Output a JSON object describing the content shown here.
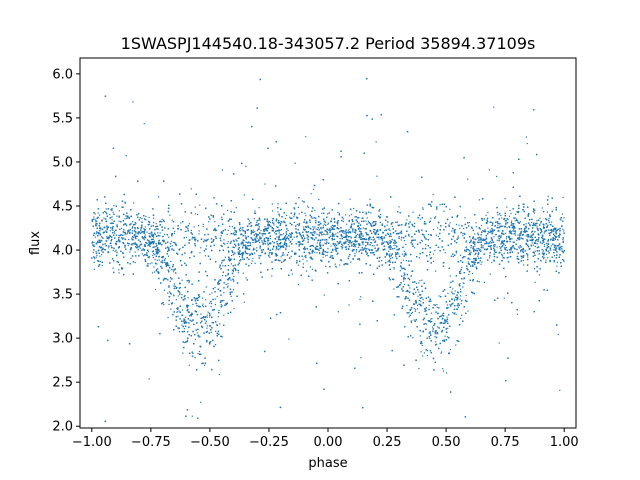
{
  "chart_data": {
    "type": "scatter",
    "title": "1SWASPJ144540.18-343057.2 Period 35894.37109s",
    "xlabel": "phase",
    "ylabel": "flux",
    "xlim": [
      -1.05,
      1.05
    ],
    "ylim": [
      1.98,
      6.18
    ],
    "xticks": [
      -1.0,
      -0.75,
      -0.5,
      -0.25,
      0.0,
      0.25,
      0.5,
      0.75,
      1.0
    ],
    "xtick_labels": [
      "−1.00",
      "−0.75",
      "−0.50",
      "−0.25",
      "0.00",
      "0.25",
      "0.50",
      "0.75",
      "1.00"
    ],
    "yticks": [
      2.0,
      2.5,
      3.0,
      3.5,
      4.0,
      4.5,
      5.0,
      5.5,
      6.0
    ],
    "ytick_labels": [
      "2.0",
      "2.5",
      "3.0",
      "3.5",
      "4.0",
      "4.5",
      "5.0",
      "5.5",
      "6.0"
    ],
    "grid": false,
    "point_color": "#1f77b4",
    "series": [
      {
        "x": [
          -1.0,
          -0.95,
          -0.9,
          -0.85,
          -0.8,
          -0.75,
          -0.7,
          -0.65,
          -0.6,
          -0.55,
          -0.5,
          -0.45,
          -0.4,
          -0.35,
          -0.3,
          -0.25,
          -0.2,
          -0.15,
          -0.1,
          -0.05,
          0.0,
          0.05,
          0.1,
          0.15,
          0.2,
          0.25,
          0.3,
          0.35,
          0.4,
          0.45,
          0.5,
          0.55,
          0.6,
          0.65,
          0.7,
          0.75,
          0.8,
          0.85,
          0.9,
          0.95,
          1.0
        ],
        "y": [
          4.15,
          4.15,
          4.15,
          4.15,
          4.15,
          4.1,
          3.9,
          3.45,
          3.2,
          3.15,
          3.2,
          3.45,
          3.9,
          4.1,
          4.15,
          4.15,
          4.15,
          4.15,
          4.15,
          4.15,
          4.15,
          4.15,
          4.15,
          4.15,
          4.15,
          4.1,
          3.9,
          3.45,
          3.2,
          3.15,
          3.2,
          3.45,
          3.9,
          4.1,
          4.15,
          4.15,
          4.15,
          4.15,
          4.15,
          4.15,
          4.15
        ]
      }
    ]
  }
}
